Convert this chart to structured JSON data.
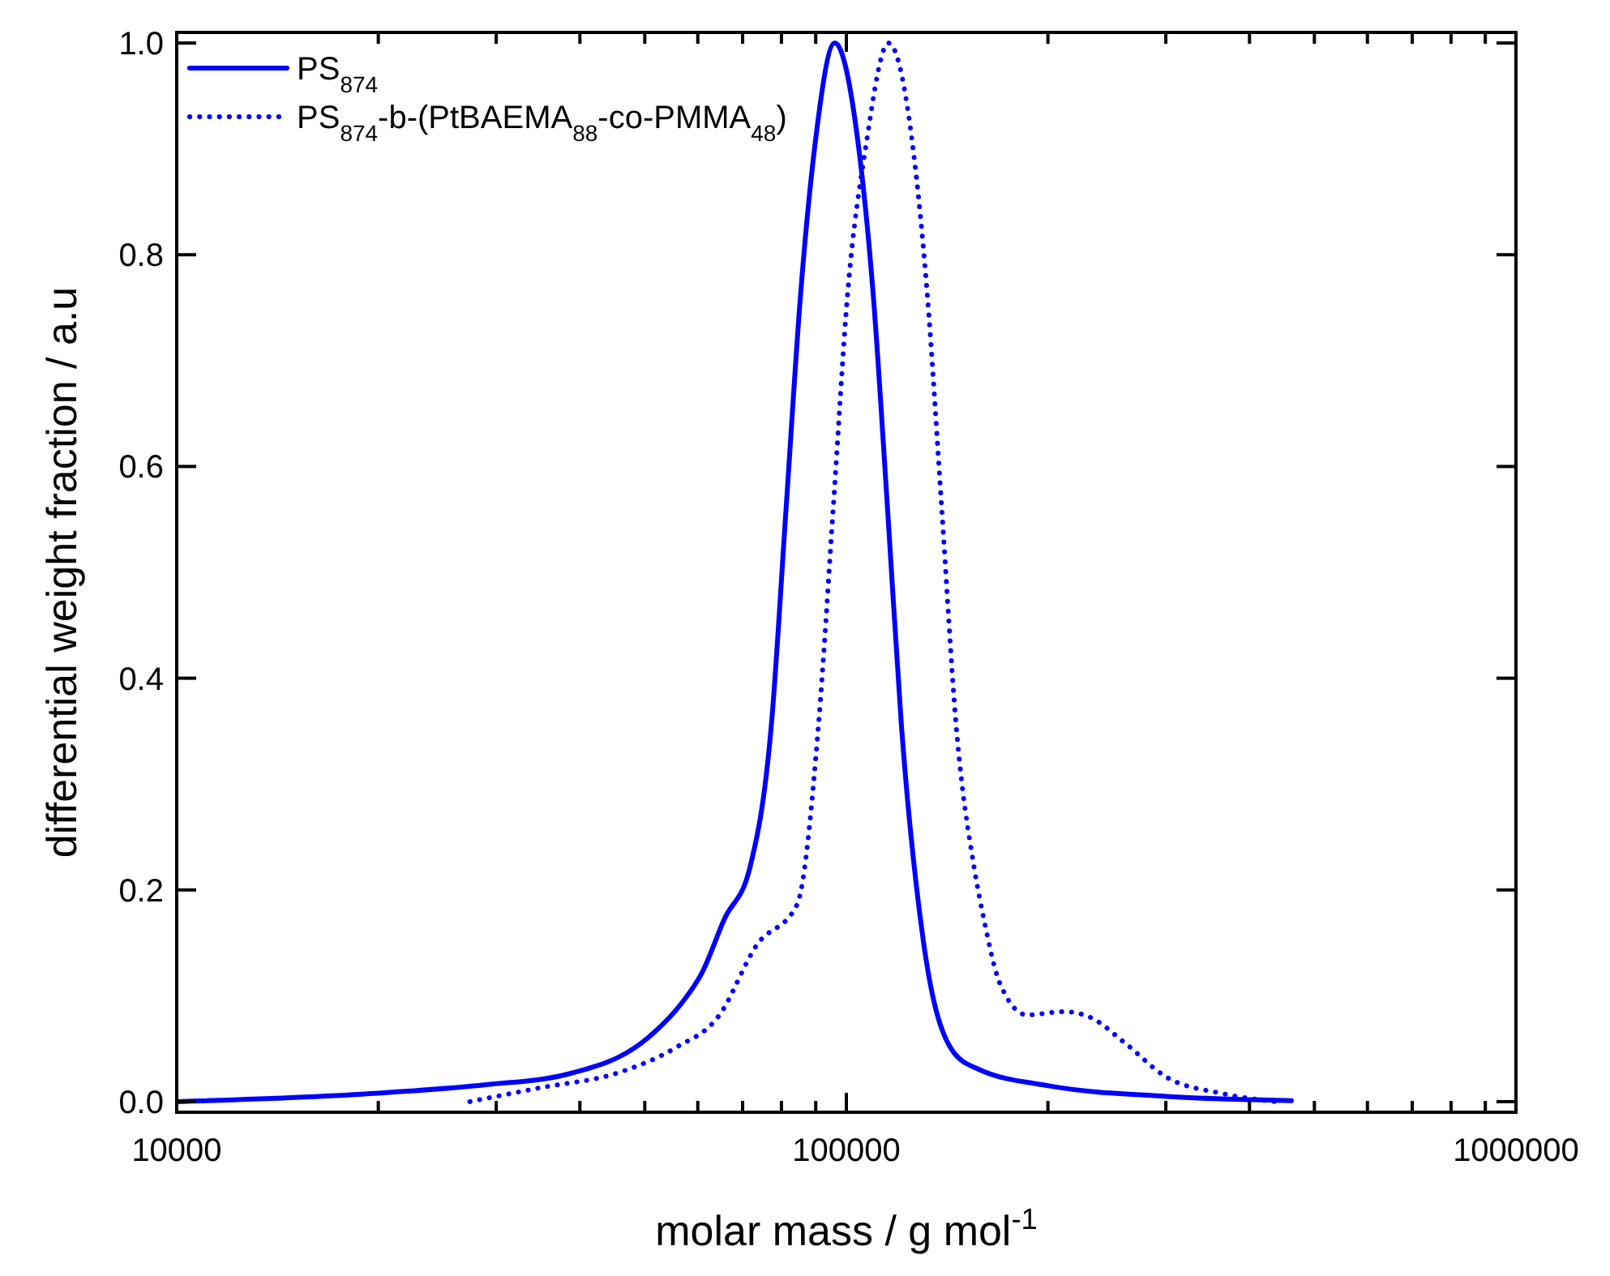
{
  "chart_data": {
    "type": "line",
    "xlabel": "molar mass / g mol$^{-1}$",
    "ylabel": "differential weight fraction / a.u",
    "log": "x",
    "xlim": [
      10000,
      1000000
    ],
    "ylim": [
      -0.01,
      1.01
    ],
    "xticks": [
      10000,
      {
        "value": 20000,
        "label": null
      },
      {
        "value": 30000,
        "label": null
      },
      {
        "value": 40000,
        "label": null
      },
      {
        "value": 50000,
        "label": null
      },
      {
        "value": 60000,
        "label": null
      },
      {
        "value": 70000,
        "label": null
      },
      {
        "value": 80000,
        "label": null
      },
      {
        "value": 90000,
        "label": null
      },
      100000,
      {
        "value": 200000,
        "label": null
      },
      {
        "value": 300000,
        "label": null
      },
      {
        "value": 400000,
        "label": null
      },
      {
        "value": 500000,
        "label": null
      },
      {
        "value": 600000,
        "label": null
      },
      {
        "value": 700000,
        "label": null
      },
      {
        "value": 800000,
        "label": null
      },
      {
        "value": 900000,
        "label": null
      },
      1000000
    ],
    "yticks": [
      {
        "value": 0,
        "label": "0.0"
      },
      {
        "value": 0.2,
        "label": "0.2"
      },
      {
        "value": 0.4,
        "label": "0.4"
      },
      {
        "value": 0.6,
        "label": "0.6"
      },
      {
        "value": 0.8,
        "label": "0.8"
      },
      {
        "value": 1,
        "label": "1.0"
      }
    ],
    "grid": false,
    "legend": "top left",
    "series": [
      {
        "name": "PS$_{874}$",
        "color": "#0000ff",
        "line_style": "solid",
        "x": [
          10000,
          19950,
          28970,
          38360,
          50700,
          56600,
          60900,
          65800,
          71700,
          77300,
          81300,
          85500,
          89700,
          96100,
          104300,
          109600,
          115200,
          120800,
          130300,
          144100,
          157100,
          200500,
          301000,
          462000
        ],
        "values": [
          0,
          0.008,
          0.016,
          0.026,
          0.061,
          0.092,
          0.122,
          0.173,
          0.22,
          0.357,
          0.561,
          0.765,
          0.902,
          1.0,
          0.902,
          0.765,
          0.561,
          0.357,
          0.152,
          0.048,
          0.031,
          0.015,
          0.005,
          0.001
        ]
      },
      {
        "name": "PS$_{874}$-b-(PtBAEMA$_{88}$-co-PMMA$_{48}$)",
        "color": "#0000ff",
        "line_style": "dotted",
        "x": [
          27400,
          34800,
          46000,
          55600,
          64500,
          73500,
          84400,
          90900,
          95600,
          100500,
          106900,
          115600,
          125700,
          132000,
          138800,
          145800,
          155300,
          160400,
          169500,
          186000,
          212000,
          232500,
          260000,
          301000,
          362000,
          437000
        ],
        "values": [
          0,
          0.013,
          0.028,
          0.051,
          0.081,
          0.148,
          0.186,
          0.357,
          0.561,
          0.765,
          0.902,
          1.0,
          0.902,
          0.765,
          0.561,
          0.357,
          0.22,
          0.173,
          0.112,
          0.082,
          0.085,
          0.079,
          0.056,
          0.023,
          0.008,
          0
        ]
      }
    ]
  }
}
